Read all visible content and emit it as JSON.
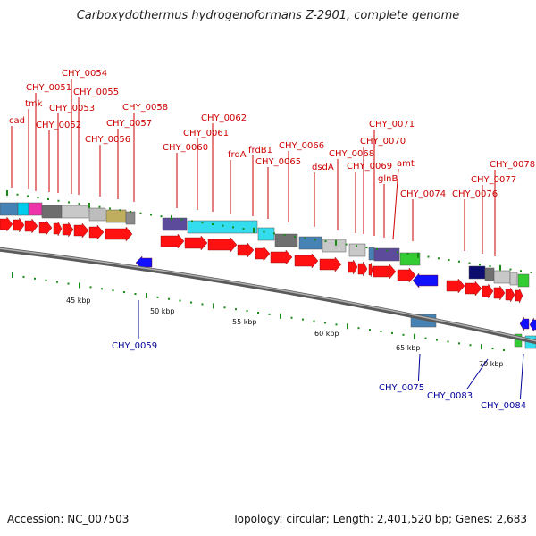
{
  "title": "Carboxydothermus hydrogenoformans Z-2901, complete genome",
  "footer": {
    "accession": "Accession: NC_007503",
    "summary": "Topology: circular; Length: 2,401,520 bp; Genes: 2,683"
  },
  "colors": {
    "forward_gene": "#ff1a1a",
    "reverse_gene": "#1a1aff",
    "forward_label": "#cc0000",
    "reverse_label": "#000099",
    "backbone": "#8a8a8a",
    "tick": "#1a8a1a"
  },
  "scale_labels": [
    "45 kbp",
    "50 kbp",
    "55 kbp",
    "60 kbp",
    "65 kbp",
    "70 kbp"
  ],
  "forward_labels": [
    "cad",
    "tmk",
    "CHY_0051",
    "CHY_0052",
    "CHY_0053",
    "CHY_0054",
    "CHY_0055",
    "CHY_0056",
    "CHY_0057",
    "CHY_0058",
    "CHY_0060",
    "CHY_0061",
    "CHY_0062",
    "frdA",
    "frdB1",
    "CHY_0065",
    "CHY_0066",
    "dsdA",
    "CHY_0068",
    "CHY_0069",
    "CHY_0070",
    "CHY_0071",
    "glnB",
    "amt",
    "CHY_0074",
    "CHY_0076",
    "CHY_0077",
    "CHY_0078"
  ],
  "reverse_labels": [
    "CHY_0059",
    "CHY_0075",
    "CHY_0083",
    "CHY_0084"
  ]
}
